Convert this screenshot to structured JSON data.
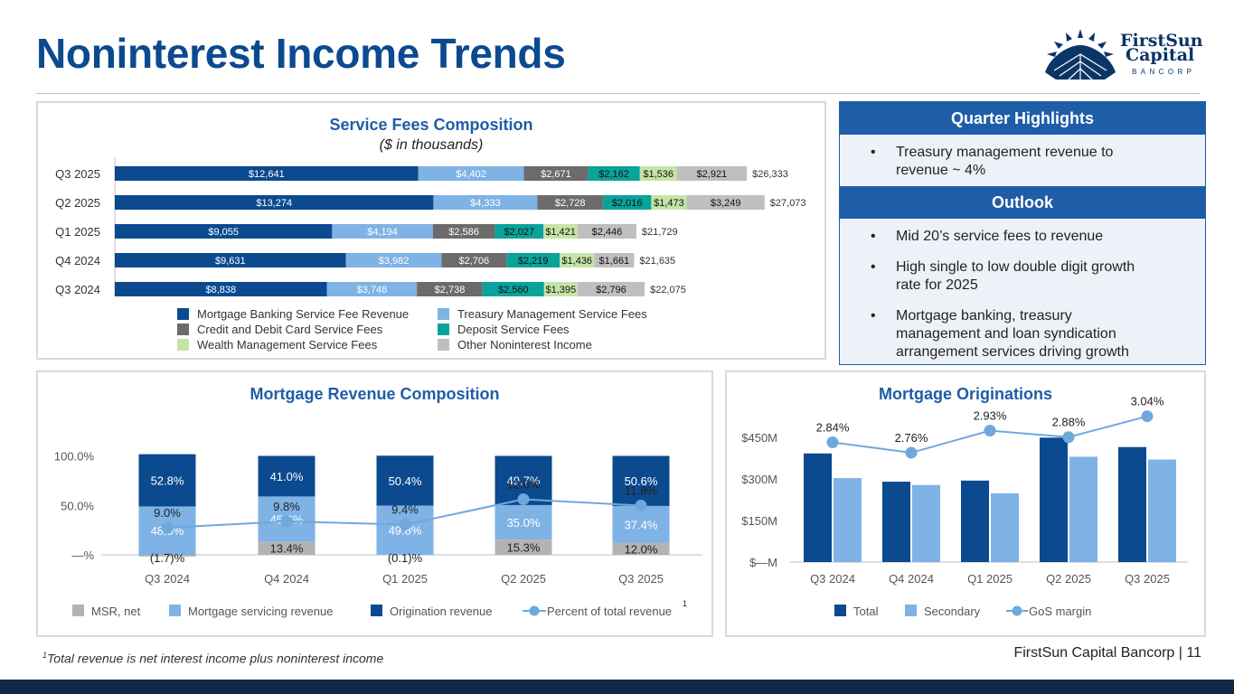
{
  "header": {
    "title": "Noninterest Income Trends"
  },
  "logo": {
    "line1": "FirstSun",
    "line2": "Capital",
    "line3": "BANCORP"
  },
  "service_fees": {
    "title": "Service Fees Composition",
    "subtitle": "($ in thousands)",
    "legend": [
      "Mortgage Banking Service Fee Revenue",
      "Treasury Management Service Fees",
      "Credit and Debit Card Service Fees",
      "Deposit Service Fees",
      "Wealth Management Service Fees",
      "Other Noninterest Income"
    ]
  },
  "mortgage_revenue": {
    "title": "Mortgage Revenue Composition",
    "legend": [
      "MSR, net",
      "Mortgage servicing revenue",
      "Origination revenue",
      "Percent of total revenue"
    ],
    "footnote_marker": "1"
  },
  "originations": {
    "title": "Mortgage Originations",
    "legend": [
      "Total",
      "Secondary",
      "GoS margin"
    ]
  },
  "highlights": {
    "title": "Quarter Highlights",
    "items": [
      "Treasury management revenue to revenue ~ 4%"
    ],
    "outlook_title": "Outlook",
    "outlook_items": [
      "Mid 20’s service fees to revenue",
      "High single to low double digit growth rate for 2025",
      "Mortgage banking, treasury management and loan syndication arrangement services driving growth"
    ]
  },
  "footer": {
    "footnote_sup": "1",
    "footnote": "Total revenue is net interest income plus noninterest income",
    "company": "FirstSun Capital Bancorp",
    "separator": "|",
    "page": "11"
  },
  "colors": {
    "navy": "#0b4a8f",
    "light_blue": "#7fb2e5",
    "dark_gray": "#6b6b6b",
    "teal": "#0aa39a",
    "light_green": "#c4e5a6",
    "light_gray": "#bfbfbf",
    "msr_gray": "#b3b3b3"
  },
  "chart_data": [
    {
      "id": "service_fees",
      "type": "bar",
      "orientation": "horizontal",
      "stacked": true,
      "title": "Service Fees Composition",
      "subtitle": "($ in thousands)",
      "categories": [
        "Q3 2025",
        "Q2 2025",
        "Q1 2025",
        "Q4 2024",
        "Q3 2024"
      ],
      "series": [
        {
          "name": "Mortgage Banking Service Fee Revenue",
          "color": "#0b4a8f",
          "values": [
            12641,
            13274,
            9055,
            9631,
            8838
          ],
          "labels": [
            "$12,641",
            "$13,274",
            "$9,055",
            "$9,631",
            "$8,838"
          ]
        },
        {
          "name": "Treasury Management Service Fees",
          "color": "#7fb2e5",
          "values": [
            4402,
            4333,
            4194,
            3982,
            3748
          ],
          "labels": [
            "$4,402",
            "$4,333",
            "$4,194",
            "$3,982",
            "$3,748"
          ]
        },
        {
          "name": "Credit and Debit Card Service Fees",
          "color": "#6b6b6b",
          "values": [
            2671,
            2728,
            2586,
            2706,
            2738
          ],
          "labels": [
            "$2,671",
            "$2,728",
            "$2,586",
            "$2,706",
            "$2,738"
          ]
        },
        {
          "name": "Deposit Service Fees",
          "color": "#0aa39a",
          "values": [
            2162,
            2016,
            2027,
            2219,
            2560
          ],
          "labels": [
            "$2,162",
            "$2,016",
            "$2,027",
            "$2,219",
            "$2,560"
          ]
        },
        {
          "name": "Wealth Management Service Fees",
          "color": "#c4e5a6",
          "values": [
            1536,
            1473,
            1421,
            1436,
            1395
          ],
          "labels": [
            "$1,536",
            "$1,473",
            "$1,421",
            "$1,436",
            "$1,395"
          ]
        },
        {
          "name": "Other Noninterest Income",
          "color": "#bfbfbf",
          "values": [
            2921,
            3249,
            2446,
            1661,
            2796
          ],
          "labels": [
            "$2,921",
            "$3,249",
            "$2,446",
            "$1,661",
            "$2,796"
          ]
        }
      ],
      "totals": [
        26333,
        27073,
        21729,
        21635,
        22075
      ],
      "total_labels": [
        "$26,333",
        "$27,073",
        "$21,729",
        "$21,635",
        "$22,075"
      ],
      "xlim": [
        0,
        30000
      ]
    },
    {
      "id": "mortgage_revenue",
      "type": "bar",
      "stacked": true,
      "percent": true,
      "title": "Mortgage Revenue Composition",
      "categories": [
        "Q3 2024",
        "Q4 2024",
        "Q1 2025",
        "Q2 2025",
        "Q3 2025"
      ],
      "series": [
        {
          "name": "MSR, net",
          "color": "#b3b3b3",
          "values": [
            -1.7,
            13.4,
            -0.1,
            15.3,
            12.0
          ],
          "labels": [
            "(1.7)%",
            "13.4%",
            "(0.1)%",
            "15.3%",
            "12.0%"
          ]
        },
        {
          "name": "Mortgage servicing revenue",
          "color": "#7fb2e5",
          "values": [
            48.9,
            45.6,
            49.8,
            35.0,
            37.4
          ],
          "labels": [
            "48.9%",
            "45.6%",
            "49.8%",
            "35.0%",
            "37.4%"
          ]
        },
        {
          "name": "Origination revenue",
          "color": "#0b4a8f",
          "values": [
            52.8,
            41.0,
            50.4,
            49.7,
            50.6
          ],
          "labels": [
            "52.8%",
            "41.0%",
            "50.4%",
            "49.7%",
            "50.6%"
          ]
        }
      ],
      "line": {
        "name": "Percent of total revenue",
        "values": [
          9.0,
          9.8,
          9.4,
          12.6,
          11.8
        ],
        "labels": [
          "9.0%",
          "9.8%",
          "9.4%",
          "12.6%",
          "11.8%"
        ]
      },
      "yticks": [
        "—%",
        "50.0%",
        "100.0%"
      ],
      "ylim": [
        -5,
        105
      ]
    },
    {
      "id": "originations",
      "type": "bar",
      "title": "Mortgage Originations",
      "categories": [
        "Q3 2024",
        "Q4 2024",
        "Q1 2025",
        "Q2 2025",
        "Q3 2025"
      ],
      "series": [
        {
          "name": "Total",
          "color": "#0b4a8f",
          "values": [
            392,
            290,
            294,
            449,
            415
          ]
        },
        {
          "name": "Secondary",
          "color": "#7fb2e5",
          "values": [
            303,
            278,
            248,
            380,
            370
          ]
        }
      ],
      "line": {
        "name": "GoS margin",
        "values": [
          2.84,
          2.76,
          2.93,
          2.88,
          3.04
        ],
        "labels": [
          "2.84%",
          "2.76%",
          "2.93%",
          "2.88%",
          "3.04%"
        ]
      },
      "yticks": [
        "$—M",
        "$150M",
        "$300M",
        "$450M"
      ],
      "ylim": [
        0,
        450
      ]
    }
  ]
}
